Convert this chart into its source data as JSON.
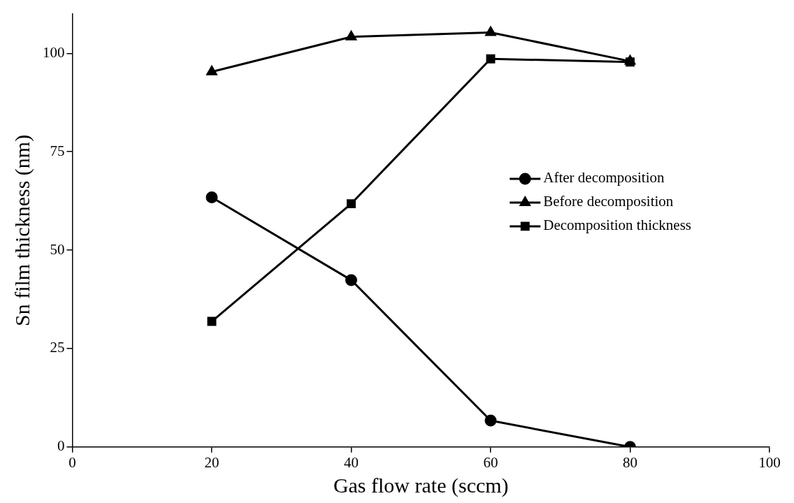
{
  "chart_data": {
    "type": "line",
    "xlabel": "Gas flow rate (sccm)",
    "ylabel": "Sn film thickness (nm)",
    "x": [
      20,
      40,
      60,
      80
    ],
    "series": [
      {
        "name": "After decomposition",
        "color": "#000000",
        "marker": "circle",
        "values": [
          63.4,
          42.4,
          6.7,
          0
        ]
      },
      {
        "name": "Before decomposition",
        "color": "#000000",
        "marker": "triangle",
        "values": [
          95.3,
          104.2,
          105.3,
          98.0
        ]
      },
      {
        "name": "Decomposition thickness",
        "color": "#000000",
        "marker": "square",
        "values": [
          31.9,
          61.8,
          98.6,
          97.8
        ]
      }
    ],
    "xlim": [
      0,
      100
    ],
    "xticks": [
      0,
      20,
      40,
      60,
      80,
      100
    ],
    "ylim": [
      0,
      110
    ],
    "yticks": [
      0,
      25,
      50,
      75,
      100
    ],
    "grid": false,
    "legend": "right",
    "line_style": "solid"
  }
}
